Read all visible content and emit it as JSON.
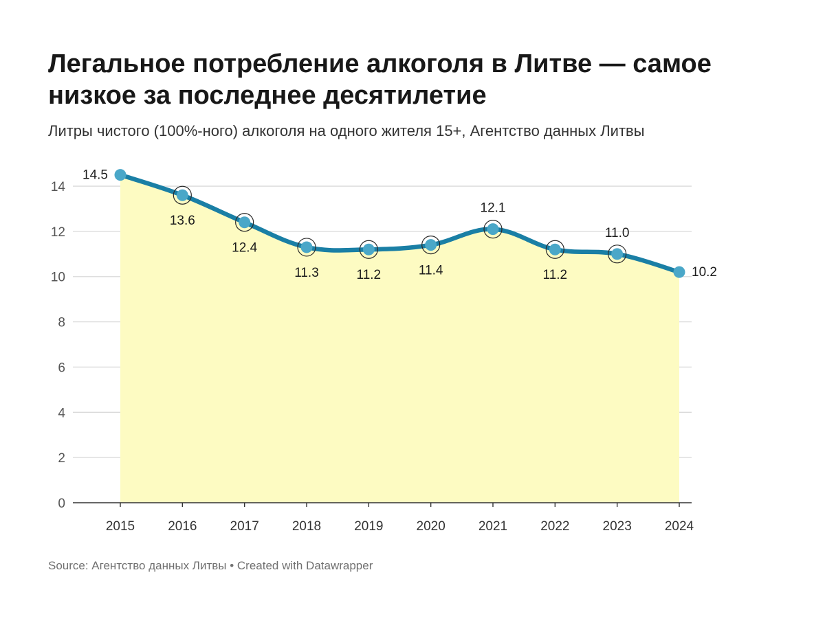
{
  "header": {
    "title": "Легальное потребление алкоголя в Литве — самое низкое за последнее десятилетие",
    "subtitle": "Литры чистого (100%-ного) алкоголя на одного жителя 15+, Агентство данных Литвы"
  },
  "footer": {
    "text": "Source: Агентство данных Литвы • Created with Datawrapper"
  },
  "chart_data": {
    "type": "area",
    "title": "Легальное потребление алкоголя в Литве — самое низкое за последнее десятилетие",
    "subtitle": "Литры чистого (100%-ного) алкоголя на одного жителя 15+, Агентство данных Литвы",
    "xlabel": "",
    "ylabel": "",
    "categories": [
      "2015",
      "2016",
      "2017",
      "2018",
      "2019",
      "2020",
      "2021",
      "2022",
      "2023",
      "2024"
    ],
    "values": [
      14.5,
      13.6,
      12.4,
      11.3,
      11.2,
      11.4,
      12.1,
      11.2,
      11.0,
      10.2
    ],
    "value_labels": [
      "14.5",
      "13.6",
      "12.4",
      "11.3",
      "11.2",
      "11.4",
      "12.1",
      "11.2",
      "11.0",
      "10.2"
    ],
    "label_positions": [
      "left",
      "below",
      "below",
      "below",
      "below",
      "below",
      "above",
      "below",
      "above",
      "right"
    ],
    "ylim": [
      0,
      14.7
    ],
    "yticks": [
      0,
      2,
      4,
      6,
      8,
      10,
      12,
      14
    ],
    "ytick_labels": [
      "0",
      "2",
      "4",
      "6",
      "8",
      "10",
      "12",
      "14"
    ],
    "grid": true,
    "legend": "none",
    "colors": {
      "line": "#1a7fa5",
      "marker": "#4aa7c8",
      "fill": "#fdfbc2",
      "grid": "#d9d9d9",
      "axis": "#333333"
    }
  }
}
